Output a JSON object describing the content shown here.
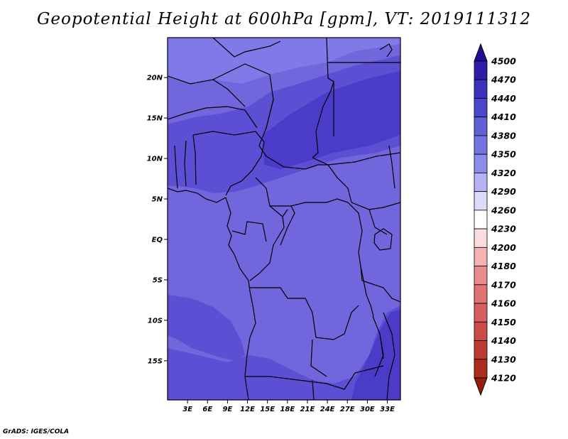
{
  "title": "Geopotential Height at 600hPa [gpm], VT: 2019111312",
  "credit": "GrADS: IGES/COLA",
  "map": {
    "lat_labels": [
      {
        "label": "20N",
        "lat": 20
      },
      {
        "label": "15N",
        "lat": 15
      },
      {
        "label": "10N",
        "lat": 10
      },
      {
        "label": "5N",
        "lat": 5
      },
      {
        "label": "EQ",
        "lat": 0
      },
      {
        "label": "5S",
        "lat": -5
      },
      {
        "label": "10S",
        "lat": -10
      },
      {
        "label": "15S",
        "lat": -15
      }
    ],
    "lon_labels": [
      {
        "label": "3E",
        "lon": 3
      },
      {
        "label": "6E",
        "lon": 6
      },
      {
        "label": "9E",
        "lon": 9
      },
      {
        "label": "12E",
        "lon": 12
      },
      {
        "label": "15E",
        "lon": 15
      },
      {
        "label": "18E",
        "lon": 18
      },
      {
        "label": "21E",
        "lon": 21
      },
      {
        "label": "24E",
        "lon": 24
      },
      {
        "label": "27E",
        "lon": 27
      },
      {
        "label": "30E",
        "lon": 30
      },
      {
        "label": "33E",
        "lon": 33
      }
    ]
  },
  "legend": {
    "levels": [
      "4500",
      "4470",
      "4440",
      "4410",
      "4380",
      "4350",
      "4320",
      "4290",
      "4260",
      "4230",
      "4200",
      "4180",
      "4170",
      "4160",
      "4150",
      "4140",
      "4130",
      "4120"
    ],
    "colors": [
      "#1e0f96",
      "#2d1eaa",
      "#3c32bd",
      "#4b46cb",
      "#5f5fd7",
      "#7373e1",
      "#8c8ceb",
      "#b4b4f5",
      "#dcdcfa",
      "#ffffff",
      "#fadcdc",
      "#f5b4b4",
      "#eb8c8c",
      "#e17373",
      "#d75f5f",
      "#cb4b46",
      "#bd3c32",
      "#aa2d1e",
      "#961e0f"
    ]
  },
  "colors": {
    "band_light": "#8079e8",
    "band_mid": "#7266dd",
    "band_dark": "#5c4fd3",
    "band_deep": "#4a3bc9",
    "border": "#000000"
  }
}
